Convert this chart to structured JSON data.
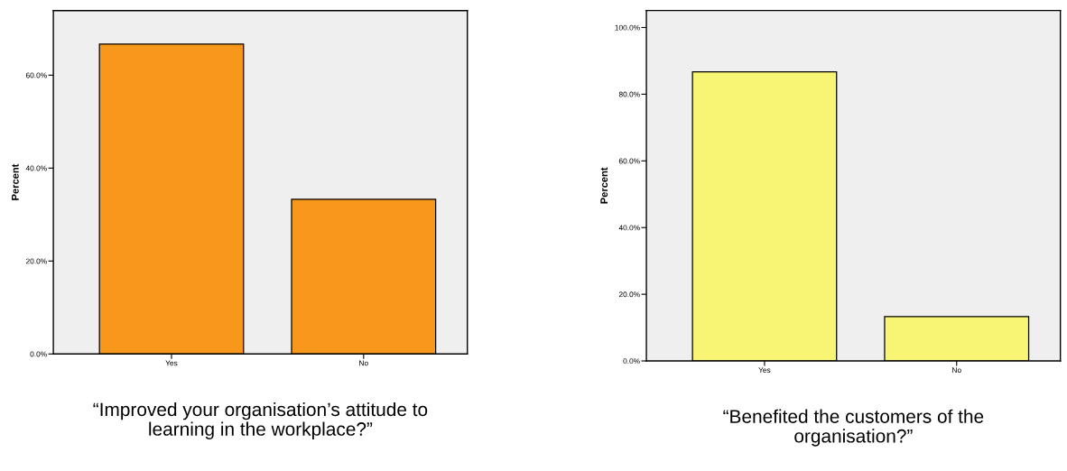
{
  "chart_data": [
    {
      "type": "bar",
      "xlabel": "“Improved your organisation’s attitude to\nlearning in the workplace?”",
      "ylabel": "Percent",
      "categories": [
        "Yes",
        "No"
      ],
      "values": [
        66.7,
        33.3
      ],
      "color": "#f7981d",
      "ylim": [
        0,
        73.9
      ],
      "yticks": [
        {
          "value": 0,
          "label": "0.0%"
        },
        {
          "value": 20,
          "label": "20.0%"
        },
        {
          "value": 40,
          "label": "40.0%"
        },
        {
          "value": 60,
          "label": "60.0%"
        }
      ],
      "grid": false,
      "legend": false
    },
    {
      "type": "bar",
      "xlabel": "“Benefited the customers of the\norganisation?”",
      "ylabel": "Percent",
      "categories": [
        "Yes",
        "No"
      ],
      "values": [
        86.7,
        13.3
      ],
      "color": "#f8f574",
      "ylim": [
        0,
        105.1
      ],
      "yticks": [
        {
          "value": 0,
          "label": "0.0%"
        },
        {
          "value": 20,
          "label": "20.0%"
        },
        {
          "value": 40,
          "label": "40.0%"
        },
        {
          "value": 60,
          "label": "60.0%"
        },
        {
          "value": 80,
          "label": "80.0%"
        },
        {
          "value": 100,
          "label": "100.0%"
        }
      ],
      "grid": false,
      "legend": false
    }
  ]
}
